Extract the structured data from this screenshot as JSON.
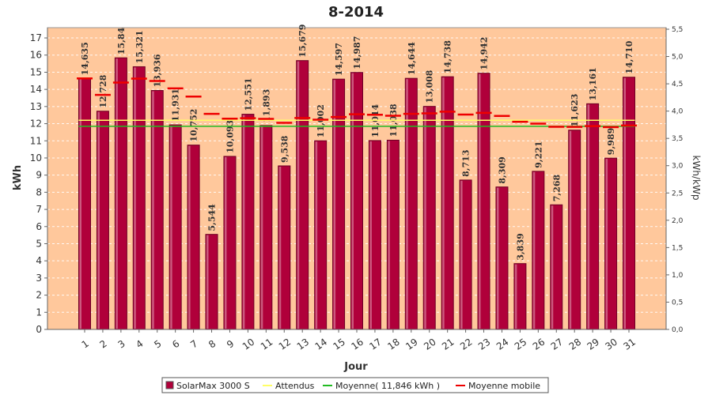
{
  "chart_data": {
    "type": "bar",
    "title": "8-2014",
    "xlabel": "Jour",
    "ylabel": "kWh",
    "y2label": "kWh/kWp",
    "ylim": [
      0,
      17.6
    ],
    "y2lim": [
      0,
      5.5
    ],
    "yticks": [
      0,
      1,
      2,
      3,
      4,
      5,
      6,
      7,
      8,
      9,
      10,
      11,
      12,
      13,
      14,
      15,
      16,
      17
    ],
    "y2ticks": [
      "0,0",
      "0,5",
      "1,0",
      "1,5",
      "2,0",
      "2,5",
      "3,0",
      "3,5",
      "4,0",
      "4,5",
      "5,0",
      "5,5"
    ],
    "grid": true,
    "legend_position": "bottom",
    "categories": [
      "1",
      "2",
      "3",
      "4",
      "5",
      "6",
      "7",
      "8",
      "9",
      "10",
      "11",
      "12",
      "13",
      "14",
      "15",
      "16",
      "17",
      "18",
      "19",
      "20",
      "21",
      "22",
      "23",
      "24",
      "25",
      "26",
      "27",
      "28",
      "29",
      "30",
      "31"
    ],
    "series": [
      {
        "name": "SolarMax 3000 S",
        "kind": "bar",
        "color": "#b0003a",
        "values": [
          14.635,
          12.728,
          15.84,
          15.321,
          13.936,
          11.931,
          10.752,
          5.544,
          10.093,
          12.551,
          11.893,
          9.538,
          15.679,
          11.002,
          14.597,
          14.987,
          11.014,
          11.038,
          14.644,
          13.008,
          14.738,
          8.713,
          14.942,
          8.309,
          3.839,
          9.221,
          7.268,
          11.623,
          13.161,
          9.989,
          14.71
        ],
        "labels": [
          "14,635",
          "12,728",
          "15,84",
          "15,321",
          "13,936",
          "11,931",
          "10,752",
          "5,544",
          "10,093",
          "12,551",
          "11,893",
          "9,538",
          "15,679",
          "11,002",
          "14,597",
          "14,987",
          "11,014",
          "11,038",
          "14,644",
          "13,008",
          "14,738",
          "8,713",
          "14,942",
          "8,309",
          "3,839",
          "9,221",
          "7,268",
          "11,623",
          "13,161",
          "9,989",
          "14,710"
        ]
      },
      {
        "name": "Attendus",
        "kind": "line",
        "color": "#ffff66",
        "value": 12.2
      },
      {
        "name": "Moyenne( 11,846 kWh )",
        "kind": "line",
        "color": "#22bb22",
        "value": 11.846
      },
      {
        "name": "Moyenne mobile",
        "kind": "dash",
        "color": "#ee0000",
        "values": [
          14.64,
          13.68,
          14.4,
          14.63,
          14.49,
          14.06,
          13.58,
          12.57,
          12.29,
          12.32,
          12.28,
          12.05,
          12.33,
          12.23,
          12.39,
          12.55,
          12.52,
          12.46,
          12.57,
          12.6,
          12.7,
          12.53,
          12.63,
          12.45,
          12.11,
          12.0,
          11.82,
          11.81,
          11.86,
          11.8,
          11.89
        ]
      }
    ]
  }
}
